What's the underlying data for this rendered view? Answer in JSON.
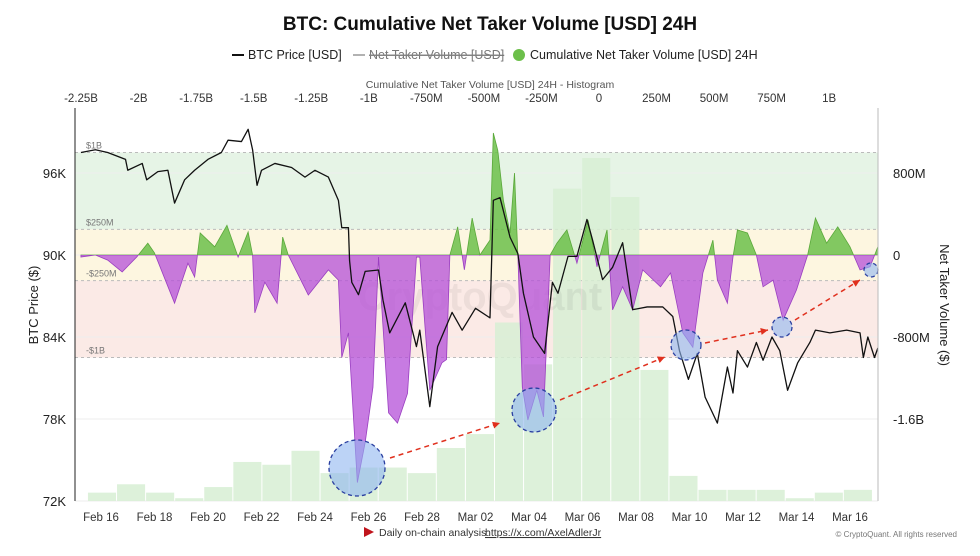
{
  "chart_data": {
    "type": "line",
    "title": "BTC: Cumulative Net Taker Volume [USD] 24H",
    "legend": {
      "placement": "top",
      "items": [
        {
          "name": "BTC Price [USD]",
          "color": "#111111",
          "style": "line"
        },
        {
          "name": "Net Taker Volume [USD]",
          "color": "#999999",
          "style": "line-hidden-strikethrough"
        },
        {
          "name": "Cumulative Net Taker Volume [USD] 24H",
          "color": "#6cbf4a",
          "style": "dot"
        }
      ]
    },
    "histogram_axis": {
      "title": "Cumulative Net Taker Volume [USD] 24H - Histogram",
      "ticks": [
        {
          "label": "-2.25B",
          "value": -2250000000.0
        },
        {
          "label": "-2B",
          "value": -2000000000.0
        },
        {
          "label": "-1.75B",
          "value": -1750000000.0
        },
        {
          "label": "-1.5B",
          "value": -1500000000.0
        },
        {
          "label": "-1.25B",
          "value": -1250000000.0
        },
        {
          "label": "-1B",
          "value": -1000000000.0
        },
        {
          "label": "-750M",
          "value": -750000000.0
        },
        {
          "label": "-500M",
          "value": -500000000.0
        },
        {
          "label": "-250M",
          "value": -250000000.0
        },
        {
          "label": "0",
          "value": 0
        },
        {
          "label": "250M",
          "value": 250000000.0
        },
        {
          "label": "500M",
          "value": 500000000.0
        },
        {
          "label": "750M",
          "value": 750000000.0
        },
        {
          "label": "1B",
          "value": 1000000000.0
        }
      ]
    },
    "x_axis": {
      "ticks": [
        "Feb 16",
        "Feb 18",
        "Feb 20",
        "Feb 22",
        "Feb 24",
        "Feb 26",
        "Feb 28",
        "Mar 02",
        "Mar 04",
        "Mar 06",
        "Mar 08",
        "Mar 10",
        "Mar 12",
        "Mar 14",
        "Mar 16"
      ]
    },
    "y_left": {
      "label": "BTC Price ($)",
      "ylim": [
        72000,
        101000
      ],
      "ticks": [
        {
          "label": "96K",
          "value": 96000
        },
        {
          "label": "90K",
          "value": 90000
        },
        {
          "label": "84K",
          "value": 84000
        },
        {
          "label": "78K",
          "value": 78000
        },
        {
          "label": "72K",
          "value": 72000
        }
      ]
    },
    "y_right": {
      "label": "Net Taker Volume ($)",
      "ticks": [
        {
          "label": "800M",
          "value": 800000000.0
        },
        {
          "label": "0",
          "value": 0
        },
        {
          "label": "-800M",
          "value": -800000000.0
        },
        {
          "label": "-1.6B",
          "value": -1600000000.0
        }
      ]
    },
    "bands": [
      {
        "label": "$1B",
        "value": 1000000000.0,
        "color": "#e6f4e6"
      },
      {
        "label": "$250M",
        "value": 250000000.0,
        "color": "#fdf6e0"
      },
      {
        "label": "-$250M",
        "value": -250000000.0,
        "color": "#fbeae6"
      },
      {
        "label": "-$1B",
        "value": -1000000000.0
      }
    ],
    "colors": {
      "price": "#111111",
      "positive": "#6cbf4a",
      "negative": "#b44fd8",
      "histogram": "#d7efd3",
      "highlight": "#8fb6f0",
      "arrow": "#e0301e"
    },
    "histogram": {
      "range": [
        -2220000000.0,
        1190000000.0
      ],
      "counts": [
        3,
        6,
        3,
        1,
        5,
        14,
        13,
        18,
        10,
        12,
        12,
        10,
        19,
        24,
        64,
        49,
        112,
        123,
        109,
        47,
        9,
        4,
        4,
        4,
        1,
        3,
        4
      ]
    },
    "series": [
      {
        "name": "BTC Price [USD]",
        "points": [
          [
            "Feb 15 06:00",
            97500
          ],
          [
            "Feb 15 19:00",
            97700
          ],
          [
            "Feb 16 06:00",
            97500
          ],
          [
            "Feb 16 22:00",
            97000
          ],
          [
            "Feb 17 00:00",
            96200
          ],
          [
            "Feb 17 13:00",
            96700
          ],
          [
            "Feb 17 17:00",
            95500
          ],
          [
            "Feb 18 03:00",
            96100
          ],
          [
            "Feb 18 12:00",
            96200
          ],
          [
            "Feb 18 18:00",
            93800
          ],
          [
            "Feb 19 03:00",
            95500
          ],
          [
            "Feb 19 12:00",
            96200
          ],
          [
            "Feb 20 00:00",
            97000
          ],
          [
            "Feb 20 12:00",
            97500
          ],
          [
            "Feb 20 18:00",
            98400
          ],
          [
            "Feb 21 06:00",
            98300
          ],
          [
            "Feb 21 12:00",
            99200
          ],
          [
            "Feb 21 16:00",
            97700
          ],
          [
            "Feb 21 20:00",
            95100
          ],
          [
            "Feb 22 00:00",
            96200
          ],
          [
            "Feb 22 12:00",
            96700
          ],
          [
            "Feb 23 03:00",
            96400
          ],
          [
            "Feb 23 15:00",
            95700
          ],
          [
            "Feb 24 00:00",
            96200
          ],
          [
            "Feb 24 12:00",
            95700
          ],
          [
            "Feb 24 21:00",
            94000
          ],
          [
            "Feb 25 00:00",
            92000
          ],
          [
            "Feb 25 06:00",
            92000
          ],
          [
            "Feb 25 07:00",
            89600
          ],
          [
            "Feb 25 09:00",
            88000
          ],
          [
            "Feb 25 15:00",
            87100
          ],
          [
            "Feb 25 21:00",
            88800
          ],
          [
            "Feb 26 09:00",
            88900
          ],
          [
            "Feb 26 13:00",
            86700
          ],
          [
            "Feb 26 19:00",
            84300
          ],
          [
            "Feb 27 09:00",
            86500
          ],
          [
            "Feb 27 19:00",
            83300
          ],
          [
            "Feb 27 22:00",
            84500
          ],
          [
            "Feb 28 07:00",
            78900
          ],
          [
            "Feb 28 14:00",
            83300
          ],
          [
            "Mar 01 03:00",
            85800
          ],
          [
            "Mar 01 12:00",
            84500
          ],
          [
            "Mar 02 00:00",
            86100
          ],
          [
            "Mar 02 13:00",
            85400
          ],
          [
            "Mar 02 16:00",
            94000
          ],
          [
            "Mar 02 22:00",
            94200
          ],
          [
            "Mar 03 07:00",
            91300
          ],
          [
            "Mar 03 14:00",
            90100
          ],
          [
            "Mar 03 19:00",
            87200
          ],
          [
            "Mar 04 04:00",
            84000
          ],
          [
            "Mar 04 14:00",
            82800
          ],
          [
            "Mar 04 21:00",
            88000
          ],
          [
            "Mar 05 02:00",
            87200
          ],
          [
            "Mar 05 11:00",
            89900
          ],
          [
            "Mar 05 19:00",
            89900
          ],
          [
            "Mar 06 04:00",
            92600
          ],
          [
            "Mar 06 09:00",
            91100
          ],
          [
            "Mar 06 18:00",
            88200
          ],
          [
            "Mar 07 03:00",
            89100
          ],
          [
            "Mar 07 12:00",
            90900
          ],
          [
            "Mar 07 21:00",
            86000
          ],
          [
            "Mar 08 10:00",
            86200
          ],
          [
            "Mar 09 00:00",
            86200
          ],
          [
            "Mar 09 09:00",
            85500
          ],
          [
            "Mar 09 15:00",
            83000
          ],
          [
            "Mar 09 23:00",
            80900
          ],
          [
            "Mar 10 07:00",
            82800
          ],
          [
            "Mar 10 14:00",
            79600
          ],
          [
            "Mar 11 01:00",
            77700
          ],
          [
            "Mar 11 10:00",
            81800
          ],
          [
            "Mar 11 15:00",
            79900
          ],
          [
            "Mar 11 19:00",
            83000
          ],
          [
            "Mar 12 04:00",
            81800
          ],
          [
            "Mar 12 12:00",
            83600
          ],
          [
            "Mar 12 18:00",
            82300
          ],
          [
            "Mar 13 02:00",
            84000
          ],
          [
            "Mar 13 09:00",
            83000
          ],
          [
            "Mar 13 16:00",
            80100
          ],
          [
            "Mar 14 01:00",
            82100
          ],
          [
            "Mar 14 12:00",
            83600
          ],
          [
            "Mar 14 17:00",
            84500
          ],
          [
            "Mar 15 06:00",
            84300
          ],
          [
            "Mar 15 21:00",
            84500
          ],
          [
            "Mar 16 09:00",
            84300
          ],
          [
            "Mar 16 12:00",
            82500
          ],
          [
            "Mar 16 16:00",
            84000
          ],
          [
            "Mar 16 22:00",
            82500
          ],
          [
            "Mar 17 01:00",
            83200
          ]
        ]
      },
      {
        "name": "Cumulative Net Taker Volume [USD] 24H",
        "points": [
          [
            "Feb 15 06:00",
            -20000000.0
          ],
          [
            "Feb 15 19:00",
            0
          ],
          [
            "Feb 16 06:00",
            -50000000.0
          ],
          [
            "Feb 16 19:00",
            -165000000.0
          ],
          [
            "Feb 17 08:00",
            -20000000.0
          ],
          [
            "Feb 17 18:00",
            115000000.0
          ],
          [
            "Feb 18 00:00",
            20000000.0
          ],
          [
            "Feb 18 09:00",
            -225000000.0
          ],
          [
            "Feb 18 18:00",
            -470000000.0
          ],
          [
            "Feb 19 06:00",
            -80000000.0
          ],
          [
            "Feb 19 12:00",
            -215000000.0
          ],
          [
            "Feb 19 17:00",
            215000000.0
          ],
          [
            "Feb 20 06:00",
            80000000.0
          ],
          [
            "Feb 20 17:00",
            290000000.0
          ],
          [
            "Feb 21 03:00",
            -20000000.0
          ],
          [
            "Feb 21 12:00",
            225000000.0
          ],
          [
            "Feb 21 16:00",
            0
          ],
          [
            "Feb 21 18:00",
            -565000000.0
          ],
          [
            "Feb 22 03:00",
            -265000000.0
          ],
          [
            "Feb 22 14:00",
            -470000000.0
          ],
          [
            "Feb 22 19:00",
            175000000.0
          ],
          [
            "Feb 23 00:00",
            0
          ],
          [
            "Feb 23 18:00",
            -390000000.0
          ],
          [
            "Feb 24 12:00",
            -145000000.0
          ],
          [
            "Feb 24 21:00",
            -245000000.0
          ],
          [
            "Feb 25 00:00",
            -1000000000.0
          ],
          [
            "Feb 25 06:00",
            -760000000.0
          ],
          [
            "Feb 25 14:00",
            -2220000000.0
          ],
          [
            "Feb 25 21:00",
            -1830000000.0
          ],
          [
            "Feb 26 04:00",
            -1290000000.0
          ],
          [
            "Feb 26 09:00",
            -20000000.0
          ],
          [
            "Feb 26 18:00",
            -1540000000.0
          ],
          [
            "Feb 27 02:00",
            -1640000000.0
          ],
          [
            "Feb 27 11:00",
            -1350000000.0
          ],
          [
            "Feb 27 19:00",
            -20000000.0
          ],
          [
            "Feb 27 22:00",
            -20000000.0
          ],
          [
            "Feb 28 07:00",
            -1320000000.0
          ],
          [
            "Feb 28 18:00",
            -1050000000.0
          ],
          [
            "Feb 28 22:00",
            -1020000000.0
          ],
          [
            "Mar 01 01:00",
            0
          ],
          [
            "Mar 01 08:00",
            275000000.0
          ],
          [
            "Mar 01 14:00",
            -145000000.0
          ],
          [
            "Mar 01 21:00",
            360000000.0
          ],
          [
            "Mar 02 04:00",
            0
          ],
          [
            "Mar 02 13:00",
            145000000.0
          ],
          [
            "Mar 02 16:00",
            1190000000.0
          ],
          [
            "Mar 02 20:00",
            1020000000.0
          ],
          [
            "Mar 03 01:00",
            535000000.0
          ],
          [
            "Mar 03 07:00",
            215000000.0
          ],
          [
            "Mar 03 11:00",
            800000000.0
          ],
          [
            "Mar 03 14:00",
            0
          ],
          [
            "Mar 03 18:00",
            -1290000000.0
          ],
          [
            "Mar 03 23:00",
            -1610000000.0
          ],
          [
            "Mar 04 07:00",
            -1320000000.0
          ],
          [
            "Mar 04 13:00",
            -1580000000.0
          ],
          [
            "Mar 04 19:00",
            0
          ],
          [
            "Mar 05 01:00",
            115000000.0
          ],
          [
            "Mar 05 10:00",
            245000000.0
          ],
          [
            "Mar 05 19:00",
            -80000000.0
          ],
          [
            "Mar 06 05:00",
            340000000.0
          ],
          [
            "Mar 06 13:00",
            -115000000.0
          ],
          [
            "Mar 06 22:00",
            245000000.0
          ],
          [
            "Mar 07 03:00",
            -535000000.0
          ],
          [
            "Mar 07 12:00",
            -310000000.0
          ],
          [
            "Mar 07 21:00",
            -535000000.0
          ],
          [
            "Mar 08 06:00",
            -145000000.0
          ],
          [
            "Mar 08 22:00",
            -310000000.0
          ],
          [
            "Mar 09 07:00",
            -175000000.0
          ],
          [
            "Mar 09 18:00",
            -760000000.0
          ],
          [
            "Mar 10 03:00",
            -900000000.0
          ],
          [
            "Mar 10 12:00",
            -175000000.0
          ],
          [
            "Mar 10 21:00",
            145000000.0
          ],
          [
            "Mar 11 01:00",
            -245000000.0
          ],
          [
            "Mar 11 10:00",
            -470000000.0
          ],
          [
            "Mar 11 15:00",
            -20000000.0
          ],
          [
            "Mar 11 19:00",
            245000000.0
          ],
          [
            "Mar 12 04:00",
            215000000.0
          ],
          [
            "Mar 12 12:00",
            0
          ],
          [
            "Mar 12 18:00",
            -310000000.0
          ],
          [
            "Mar 13 03:00",
            -245000000.0
          ],
          [
            "Mar 13 12:00",
            -635000000.0
          ],
          [
            "Mar 14 00:00",
            -340000000.0
          ],
          [
            "Mar 14 10:00",
            0
          ],
          [
            "Mar 14 17:00",
            360000000.0
          ],
          [
            "Mar 15 03:00",
            115000000.0
          ],
          [
            "Mar 15 13:00",
            275000000.0
          ],
          [
            "Mar 16 00:00",
            80000000.0
          ],
          [
            "Mar 16 09:00",
            -145000000.0
          ],
          [
            "Mar 16 18:00",
            -115000000.0
          ],
          [
            "Mar 17 01:00",
            80000000.0
          ]
        ]
      }
    ]
  },
  "watermark": "CryptoQuant",
  "footer": {
    "label": "Daily on-chain analysis:",
    "link": "https://x.com/AxelAdlerJr",
    "copyright": "© CryptoQuant. All rights reserved"
  }
}
